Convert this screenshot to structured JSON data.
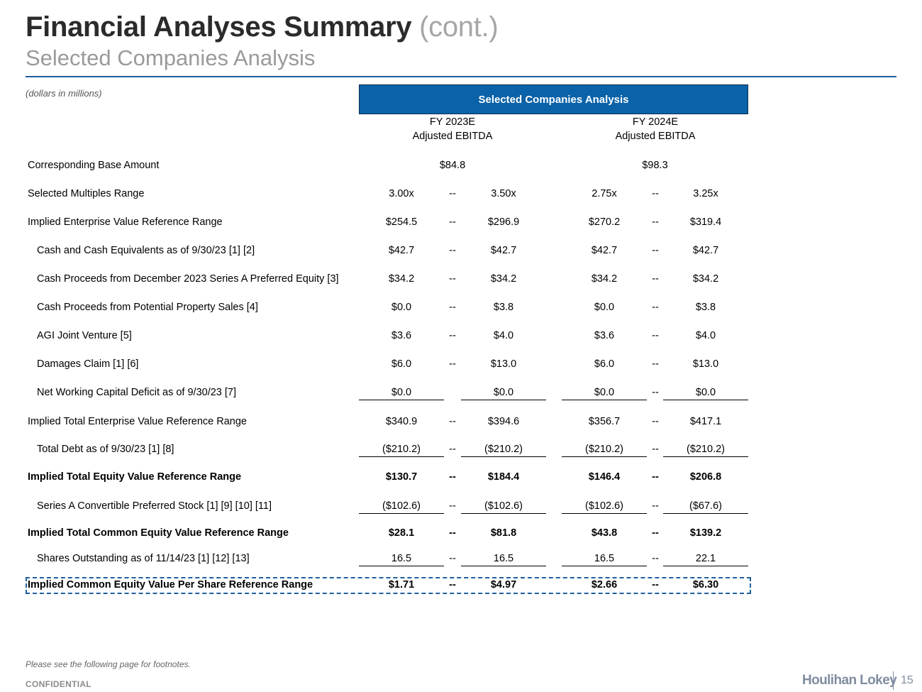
{
  "header": {
    "title": "Financial Analyses Summary",
    "title_suffix": "(cont.)",
    "subtitle": "Selected Companies Analysis",
    "units_note": "(dollars in millions)"
  },
  "table": {
    "section_header": "Selected Companies Analysis",
    "columns": [
      {
        "line1": "FY 2023E",
        "line2": "Adjusted EBITDA"
      },
      {
        "line1": "FY 2024E",
        "line2": "Adjusted EBITDA"
      }
    ],
    "dash": "--",
    "base_amount": {
      "label": "Corresponding Base Amount",
      "fy2023": "$84.8",
      "fy2024": "$98.3"
    },
    "rows": [
      {
        "label": "Selected Multiples Range",
        "values": [
          "3.00x",
          "3.50x",
          "2.75x",
          "3.25x"
        ]
      },
      {
        "label": "Implied Enterprise Value Reference Range",
        "values": [
          "$254.5",
          "$296.9",
          "$270.2",
          "$319.4"
        ]
      },
      {
        "label": "Cash and Cash Equivalents as of 9/30/23 [1] [2]",
        "values": [
          "$42.7",
          "$42.7",
          "$42.7",
          "$42.7"
        ]
      },
      {
        "label": "Cash Proceeds from December 2023 Series A Preferred Equity [3]",
        "values": [
          "$34.2",
          "$34.2",
          "$34.2",
          "$34.2"
        ]
      },
      {
        "label": "Cash Proceeds from Potential Property Sales [4]",
        "values": [
          "$0.0",
          "$3.8",
          "$0.0",
          "$3.8"
        ]
      },
      {
        "label": "AGI Joint Venture [5]",
        "values": [
          "$3.6",
          "$4.0",
          "$3.6",
          "$4.0"
        ]
      },
      {
        "label": "Damages Claim [1] [6]",
        "values": [
          "$6.0",
          "$13.0",
          "$6.0",
          "$13.0"
        ]
      },
      {
        "label": "Net Working Capital Deficit as of 9/30/23 [7]",
        "values": [
          "$0.0",
          "$0.0",
          "$0.0",
          "$0.0"
        ]
      },
      {
        "label": "Implied Total Enterprise Value Reference Range",
        "values": [
          "$340.9",
          "$394.6",
          "$356.7",
          "$417.1"
        ]
      },
      {
        "label": "Total Debt as of 9/30/23 [1] [8]",
        "values": [
          "($210.2)",
          "($210.2)",
          "($210.2)",
          "($210.2)"
        ]
      },
      {
        "label": "Implied Total Equity Value Reference Range",
        "values": [
          "$130.7",
          "$184.4",
          "$146.4",
          "$206.8"
        ]
      },
      {
        "label": "Series A Convertible Preferred Stock [1] [9] [10] [11]",
        "values": [
          "($102.6)",
          "($102.6)",
          "($102.6)",
          "($67.6)"
        ]
      },
      {
        "label": "Implied Total Common Equity Value Reference Range",
        "values": [
          "$28.1",
          "$81.8",
          "$43.8",
          "$139.2"
        ]
      },
      {
        "label": "Shares Outstanding as of 11/14/23 [1] [12] [13]",
        "values": [
          "16.5",
          "16.5",
          "16.5",
          "22.1"
        ]
      },
      {
        "label": "Implied Common Equity Value Per Share Reference Range",
        "values": [
          "$1.71",
          "$4.97",
          "$2.66",
          "$6.30"
        ]
      }
    ]
  },
  "footer": {
    "footnote_ref": "Please see the following page for footnotes.",
    "confidential": "CONFIDENTIAL",
    "logo_text": "Houlihan Lokey",
    "page_number": "15"
  },
  "colors": {
    "accent_blue": "#0a62a8",
    "rule_blue": "#1f5f9c",
    "title_gray": "#2b2b2b",
    "subtitle_gray": "#9a9a9a"
  }
}
